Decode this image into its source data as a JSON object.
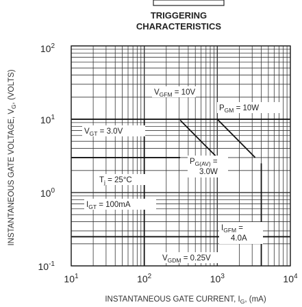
{
  "chart_data": {
    "type": "line",
    "title_lines": [
      "TRIGGERING",
      "CHARACTERISTICS"
    ],
    "xlabel": "INSTANTANEOUS GATE CURRENT, I",
    "xlabel_sub": "G",
    "xlabel_unit": ", (mA)",
    "ylabel": "INSTANTANEOUS GATE VOLTAGE, V",
    "ylabel_sub": "G",
    "ylabel_unit": ", (VOLTS)",
    "x_scale": "log",
    "y_scale": "log",
    "xlim": [
      10,
      10000
    ],
    "ylim": [
      0.1,
      100
    ],
    "x_ticks": [
      {
        "value": 10,
        "base": "10",
        "exp": "1"
      },
      {
        "value": 100,
        "base": "10",
        "exp": "2"
      },
      {
        "value": 1000,
        "base": "10",
        "exp": "3"
      },
      {
        "value": 10000,
        "base": "10",
        "exp": "4"
      }
    ],
    "y_ticks": [
      {
        "value": 100,
        "base": "10",
        "exp": "2"
      },
      {
        "value": 10,
        "base": "10",
        "exp": "1"
      },
      {
        "value": 1,
        "base": "10",
        "exp": "0"
      },
      {
        "value": 0.1,
        "base": "10",
        "exp": "-1"
      }
    ],
    "grid": true,
    "series": [
      {
        "name": "P_G(AV) = 3.0W",
        "x": [
          310,
          650,
          1000
        ],
        "y": [
          9.7,
          4.6,
          3.0
        ]
      },
      {
        "name": "P_GM = 10W",
        "x": [
          1000,
          3300
        ],
        "y": [
          10,
          3.0
        ]
      }
    ],
    "limit_lines": [
      {
        "name": "V_GFM",
        "orientation": "horizontal",
        "value": 10,
        "x_range": [
          10,
          10000
        ]
      },
      {
        "name": "V_GT",
        "orientation": "horizontal",
        "value": 3.0,
        "x_range": [
          10,
          310
        ]
      },
      {
        "name": "I_GT",
        "orientation": "vertical",
        "value": 100,
        "y_range": [
          0.1,
          10
        ]
      },
      {
        "name": "I_GFM",
        "orientation": "vertical",
        "value": 4000,
        "y_range": [
          0.1,
          2.5
        ]
      },
      {
        "name": "V_GDM",
        "orientation": "horizontal",
        "value": 0.25,
        "x_range": [
          10,
          10000
        ]
      }
    ],
    "annotations": [
      {
        "lines": [
          "V_GFM = 10V"
        ]
      },
      {
        "lines": [
          "P_GM = 10W"
        ]
      },
      {
        "lines": [
          "V_GT = 3.0V"
        ]
      },
      {
        "lines": [
          "P_G(AV) =",
          "3.0W"
        ]
      },
      {
        "lines": [
          "T_j = 25°C"
        ]
      },
      {
        "lines": [
          "I_GT = 100mA"
        ]
      },
      {
        "lines": [
          "I_GFM =",
          "4.0A"
        ]
      },
      {
        "lines": [
          "V_GDM = 0.25V"
        ]
      }
    ]
  }
}
